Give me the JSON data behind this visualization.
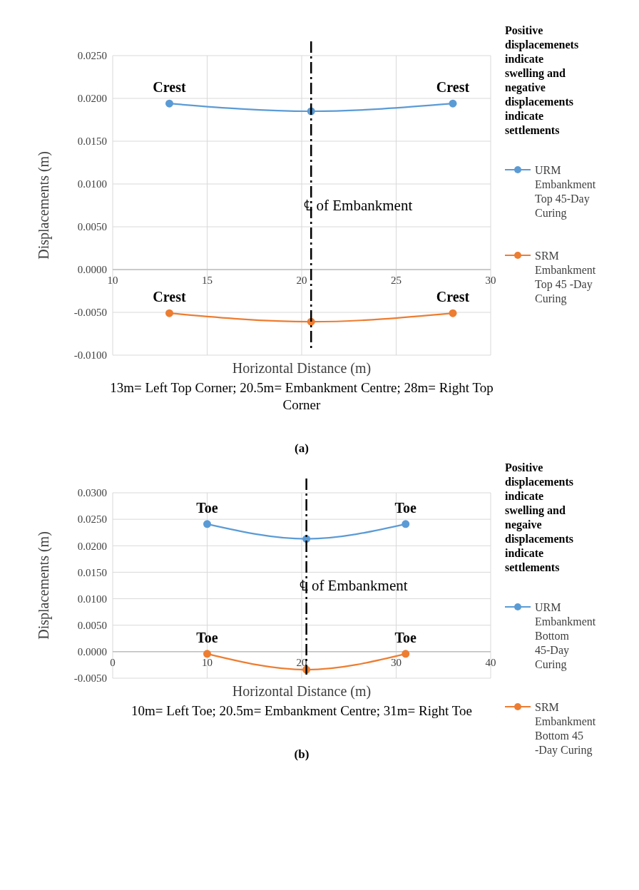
{
  "chart_data": [
    {
      "type": "line",
      "xlabel": "Horizontal Distance (m)",
      "ylabel": "Displacements (m)",
      "legend_title": "Positive displacemenets indicate swelling and negative displacements indicate settlements",
      "x": [
        13,
        20.5,
        28
      ],
      "series": [
        {
          "name": "URM Embankment Top 45-Day Curing",
          "color": "#5b9bd5",
          "values": [
            0.0194,
            0.0185,
            0.0194
          ]
        },
        {
          "name": "SRM Embankment Top 45 -Day Curing",
          "color": "#ed7d31",
          "values": [
            -0.0051,
            -0.0061,
            -0.0051
          ]
        }
      ],
      "xlim": [
        10,
        30
      ],
      "xticks": [
        10,
        15,
        20,
        25,
        30
      ],
      "ylim": [
        -0.01,
        0.025
      ],
      "yticks": [
        {
          "value": -0.01,
          "label": "-0.0100"
        },
        {
          "value": -0.005,
          "label": "-0.0050"
        },
        {
          "value": 0,
          "label": "0.0000"
        },
        {
          "value": 0.005,
          "label": "0.0050"
        },
        {
          "value": 0.01,
          "label": "0.0100"
        },
        {
          "value": 0.015,
          "label": "0.0150"
        },
        {
          "value": 0.02,
          "label": "0.0200"
        },
        {
          "value": 0.025,
          "label": "0.0250"
        }
      ],
      "ref_lines": [
        {
          "axis": "x",
          "value": 20.5,
          "label": "℄ of Embankment",
          "color": "#000000"
        }
      ],
      "annotations": [
        {
          "text": "Crest",
          "x": 13,
          "y": 0.0194
        },
        {
          "text": "Crest",
          "x": 28,
          "y": 0.0194
        },
        {
          "text": "Crest",
          "x": 13,
          "y": -0.0051
        },
        {
          "text": "Crest",
          "x": 28,
          "y": -0.0051
        },
        "13m= Left Top Corner; 20.5m= Embankment Centre; 28m= Right Top Corner",
        "(a)"
      ],
      "grid": true,
      "legend": "right",
      "marker": "circle"
    },
    {
      "type": "line",
      "xlabel": "Horizontal Distance (m)",
      "ylabel": "Displacements (m)",
      "legend_title": "Positive displacements indicate swelling and negaive displacements indicate settlements",
      "x": [
        10,
        20.5,
        31
      ],
      "series": [
        {
          "name": "URM Embankment Bottom 45-Day Curing",
          "color": "#5b9bd5",
          "values": [
            0.0241,
            0.0213,
            0.0241
          ]
        },
        {
          "name": "SRM Embankment Bottom 45 -Day Curing",
          "color": "#ed7d31",
          "values": [
            -0.0004,
            -0.0034,
            -0.0004
          ]
        }
      ],
      "xlim": [
        0,
        40
      ],
      "xticks": [
        0,
        10,
        20,
        30,
        40
      ],
      "ylim": [
        -0.005,
        0.03
      ],
      "yticks": [
        {
          "value": -0.005,
          "label": "-0.0050"
        },
        {
          "value": 0,
          "label": "0.0000"
        },
        {
          "value": 0.005,
          "label": "0.0050"
        },
        {
          "value": 0.01,
          "label": "0.0100"
        },
        {
          "value": 0.015,
          "label": "0.0150"
        },
        {
          "value": 0.02,
          "label": "0.0200"
        },
        {
          "value": 0.025,
          "label": "0.0250"
        },
        {
          "value": 0.03,
          "label": "0.0300"
        }
      ],
      "ref_lines": [
        {
          "axis": "x",
          "value": 20.5,
          "label": "℄ of Embankment",
          "color": "#000000"
        }
      ],
      "annotations": [
        {
          "text": "Toe",
          "x": 10,
          "y": 0.0241
        },
        {
          "text": "Toe",
          "x": 31,
          "y": 0.0241
        },
        {
          "text": "Toe",
          "x": 10,
          "y": -0.0004
        },
        {
          "text": "Toe",
          "x": 31,
          "y": -0.0004
        },
        "10m= Left Toe; 20.5m= Embankment Centre; 31m= Right Toe",
        "(b)"
      ],
      "grid": true,
      "legend": "right",
      "marker": "circle"
    }
  ]
}
